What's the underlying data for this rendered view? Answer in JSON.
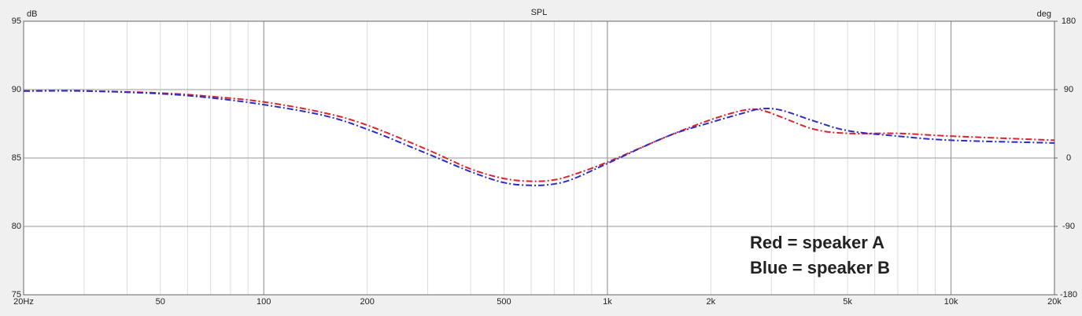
{
  "chart_data": {
    "type": "line",
    "title": "SPL",
    "y_label": "dB",
    "y2_label": "deg",
    "xscale": "log",
    "grid": true,
    "x": [
      20,
      30,
      50,
      70,
      100,
      150,
      200,
      300,
      400,
      500,
      600,
      700,
      800,
      1000,
      1500,
      2000,
      2500,
      2800,
      3200,
      4000,
      5000,
      7000,
      10000,
      20000
    ],
    "series": [
      {
        "name": "speaker A",
        "color": "#e3202a",
        "values": [
          89.9,
          89.9,
          89.75,
          89.5,
          89.1,
          88.3,
          87.4,
          85.6,
          84.2,
          83.5,
          83.3,
          83.4,
          83.8,
          84.7,
          86.6,
          87.8,
          88.5,
          88.5,
          88.0,
          87.1,
          86.8,
          86.8,
          86.6,
          86.3
        ]
      },
      {
        "name": "speaker B",
        "color": "#2b2bd0",
        "values": [
          89.9,
          89.9,
          89.7,
          89.4,
          88.9,
          88.1,
          87.1,
          85.3,
          84.0,
          83.2,
          83.0,
          83.1,
          83.5,
          84.6,
          86.6,
          87.6,
          88.3,
          88.6,
          88.5,
          87.7,
          87.0,
          86.6,
          86.3,
          86.1
        ]
      }
    ],
    "xlim": [
      20,
      20000
    ],
    "xticks": [
      {
        "value": 20,
        "label": "20Hz"
      },
      50,
      100,
      200,
      500,
      {
        "value": 1000,
        "label": "1k"
      },
      {
        "value": 2000,
        "label": "2k"
      },
      {
        "value": 5000,
        "label": "5k"
      },
      {
        "value": 10000,
        "label": "10k"
      },
      {
        "value": 20000,
        "label": "20k"
      }
    ],
    "xminorticks": [
      30,
      40,
      60,
      70,
      80,
      90,
      300,
      400,
      600,
      700,
      800,
      900,
      3000,
      4000,
      6000,
      7000,
      8000,
      9000
    ],
    "ylim": [
      75,
      95
    ],
    "yticks": [
      75,
      80,
      85,
      90,
      95
    ],
    "y2lim": [
      -180,
      180
    ],
    "y2ticks": [
      -180,
      -90,
      0,
      90,
      180
    ],
    "annotations": [
      {
        "text": "Red = speaker A",
        "color": "#e3202a"
      },
      {
        "text": "Blue = speaker B",
        "color": "#2b2bd0"
      }
    ]
  }
}
